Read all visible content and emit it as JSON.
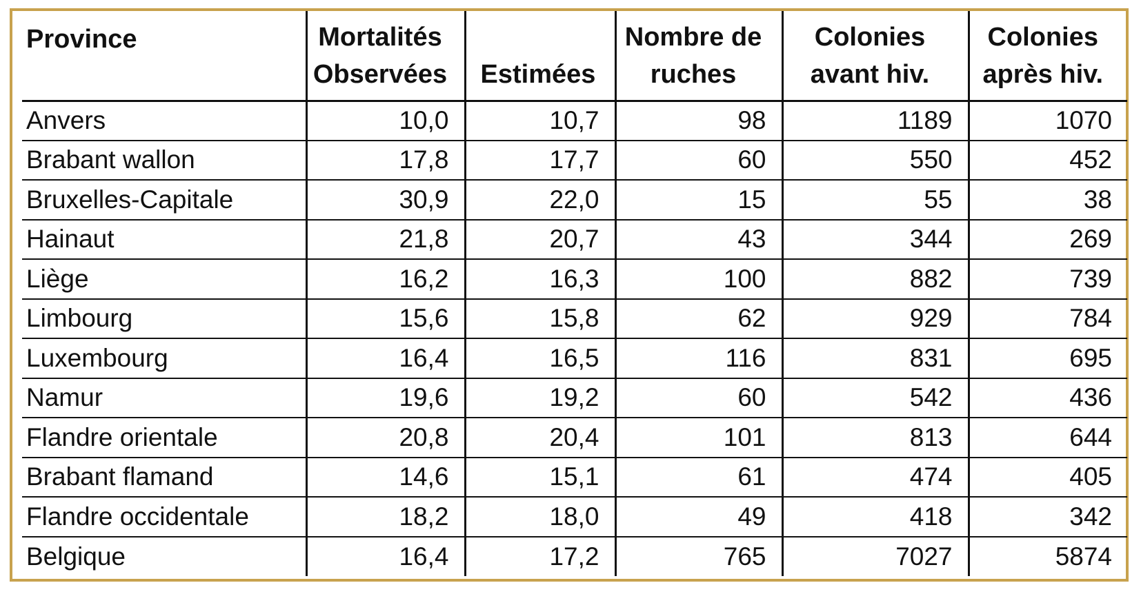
{
  "header": {
    "province": "Province",
    "mortalites_line1": "Mortalités",
    "mortalites_line2": "Observées",
    "estimees": "Estimées",
    "nombre_line1": "Nombre de",
    "nombre_line2": "ruches",
    "avant_line1": "Colonies",
    "avant_line2": "avant hiv.",
    "apres_line1": "Colonies",
    "apres_line2": "après hiv."
  },
  "rows": [
    {
      "province": "Anvers",
      "observees": "10,0",
      "estimees": "10,7",
      "ruches": "98",
      "avant": "1189",
      "apres": "1070"
    },
    {
      "province": "Brabant wallon",
      "observees": "17,8",
      "estimees": "17,7",
      "ruches": "60",
      "avant": "550",
      "apres": "452"
    },
    {
      "province": "Bruxelles-Capitale",
      "observees": "30,9",
      "estimees": "22,0",
      "ruches": "15",
      "avant": "55",
      "apres": "38"
    },
    {
      "province": "Hainaut",
      "observees": "21,8",
      "estimees": "20,7",
      "ruches": "43",
      "avant": "344",
      "apres": "269"
    },
    {
      "province": "Liège",
      "observees": "16,2",
      "estimees": "16,3",
      "ruches": "100",
      "avant": "882",
      "apres": "739"
    },
    {
      "province": "Limbourg",
      "observees": "15,6",
      "estimees": "15,8",
      "ruches": "62",
      "avant": "929",
      "apres": "784"
    },
    {
      "province": "Luxembourg",
      "observees": "16,4",
      "estimees": "16,5",
      "ruches": "116",
      "avant": "831",
      "apres": "695"
    },
    {
      "province": "Namur",
      "observees": "19,6",
      "estimees": "19,2",
      "ruches": "60",
      "avant": "542",
      "apres": "436"
    },
    {
      "province": "Flandre orientale",
      "observees": "20,8",
      "estimees": "20,4",
      "ruches": "101",
      "avant": "813",
      "apres": "644"
    },
    {
      "province": "Brabant flamand",
      "observees": "14,6",
      "estimees": "15,1",
      "ruches": "61",
      "avant": "474",
      "apres": "405"
    },
    {
      "province": "Flandre occidentale",
      "observees": "18,2",
      "estimees": "18,0",
      "ruches": "49",
      "avant": "418",
      "apres": "342"
    },
    {
      "province": "Belgique",
      "observees": "16,4",
      "estimees": "17,2",
      "ruches": "765",
      "avant": "7027",
      "apres": "5874"
    }
  ],
  "colors": {
    "frame_border": "#c8a24e",
    "grid_lines": "#111111"
  }
}
